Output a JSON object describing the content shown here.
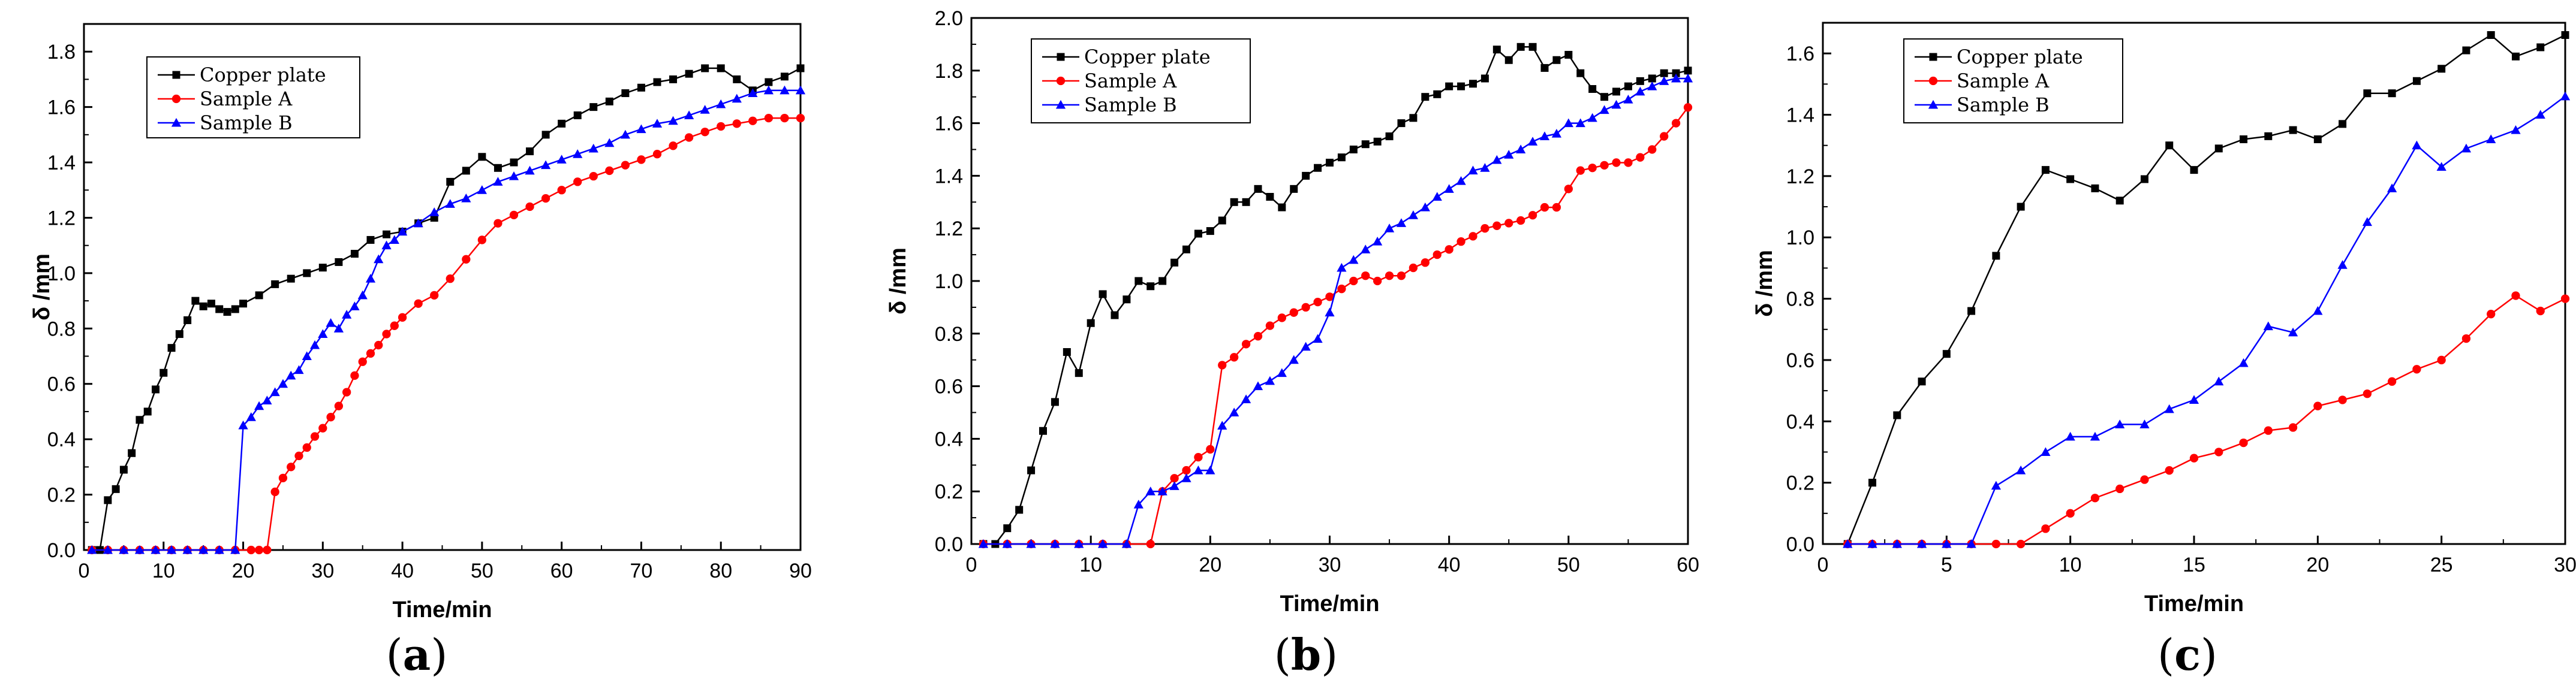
{
  "chart_data": [
    {
      "type": "line",
      "caption": "a",
      "xlabel": "Time/min",
      "ylabel": "δ /mm",
      "xlim": [
        0,
        90
      ],
      "ylim": [
        0,
        1.9
      ],
      "xticks": [
        0,
        10,
        20,
        30,
        40,
        50,
        60,
        70,
        80,
        90
      ],
      "yticks": [
        0.0,
        0.2,
        0.4,
        0.6,
        0.8,
        1.0,
        1.2,
        1.4,
        1.6,
        1.8
      ],
      "xtick_labels": [
        "0",
        "10",
        "20",
        "30",
        "40",
        "50",
        "60",
        "70",
        "80",
        "90"
      ],
      "ytick_labels": [
        "0.0",
        "0.2",
        "0.4",
        "0.6",
        "0.8",
        "1.0",
        "1.2",
        "1.4",
        "1.6",
        "1.8"
      ],
      "legend_position": "top-left",
      "series": [
        {
          "name": "Copper plate",
          "color": "#000000",
          "marker": "square",
          "x": [
            1,
            2,
            3,
            4,
            5,
            6,
            7,
            8,
            9,
            10,
            11,
            12,
            13,
            14,
            15,
            16,
            17,
            18,
            19,
            20,
            22,
            24,
            26,
            28,
            30,
            32,
            34,
            36,
            38,
            40,
            42,
            44,
            46,
            48,
            50,
            52,
            54,
            56,
            58,
            60,
            62,
            64,
            66,
            68,
            70,
            72,
            74,
            76,
            78,
            80,
            82,
            84,
            86,
            88,
            90
          ],
          "y": [
            0.0,
            0.0,
            0.18,
            0.22,
            0.29,
            0.35,
            0.47,
            0.5,
            0.58,
            0.64,
            0.73,
            0.78,
            0.83,
            0.9,
            0.88,
            0.89,
            0.87,
            0.86,
            0.87,
            0.89,
            0.92,
            0.96,
            0.98,
            1.0,
            1.02,
            1.04,
            1.07,
            1.12,
            1.14,
            1.15,
            1.18,
            1.2,
            1.33,
            1.37,
            1.42,
            1.38,
            1.4,
            1.44,
            1.5,
            1.54,
            1.57,
            1.6,
            1.62,
            1.65,
            1.67,
            1.69,
            1.7,
            1.72,
            1.74,
            1.74,
            1.7,
            1.66,
            1.69,
            1.71,
            1.74
          ]
        },
        {
          "name": "Sample A",
          "color": "#ff0000",
          "marker": "circle",
          "x": [
            1,
            3,
            5,
            7,
            9,
            11,
            13,
            15,
            17,
            19,
            21,
            22,
            23,
            24,
            25,
            26,
            27,
            28,
            29,
            30,
            31,
            32,
            33,
            34,
            35,
            36,
            37,
            38,
            39,
            40,
            42,
            44,
            46,
            48,
            50,
            52,
            54,
            56,
            58,
            60,
            62,
            64,
            66,
            68,
            70,
            72,
            74,
            76,
            78,
            80,
            82,
            84,
            86,
            88,
            90
          ],
          "y": [
            0.0,
            0.0,
            0.0,
            0.0,
            0.0,
            0.0,
            0.0,
            0.0,
            0.0,
            0.0,
            0.0,
            0.0,
            0.0,
            0.21,
            0.26,
            0.3,
            0.34,
            0.37,
            0.41,
            0.44,
            0.48,
            0.52,
            0.57,
            0.63,
            0.68,
            0.71,
            0.74,
            0.78,
            0.81,
            0.84,
            0.89,
            0.92,
            0.98,
            1.05,
            1.12,
            1.18,
            1.21,
            1.24,
            1.27,
            1.3,
            1.33,
            1.35,
            1.37,
            1.39,
            1.41,
            1.43,
            1.46,
            1.49,
            1.51,
            1.53,
            1.54,
            1.55,
            1.56,
            1.56,
            1.56
          ]
        },
        {
          "name": "Sample B",
          "color": "#0000ff",
          "marker": "triangle",
          "x": [
            1,
            3,
            5,
            7,
            9,
            11,
            13,
            15,
            17,
            19,
            20,
            21,
            22,
            23,
            24,
            25,
            26,
            27,
            28,
            29,
            30,
            31,
            32,
            33,
            34,
            35,
            36,
            37,
            38,
            39,
            40,
            42,
            44,
            46,
            48,
            50,
            52,
            54,
            56,
            58,
            60,
            62,
            64,
            66,
            68,
            70,
            72,
            74,
            76,
            78,
            80,
            82,
            84,
            86,
            88,
            90
          ],
          "y": [
            0.0,
            0.0,
            0.0,
            0.0,
            0.0,
            0.0,
            0.0,
            0.0,
            0.0,
            0.0,
            0.45,
            0.48,
            0.52,
            0.54,
            0.57,
            0.6,
            0.63,
            0.65,
            0.7,
            0.74,
            0.78,
            0.82,
            0.8,
            0.85,
            0.88,
            0.92,
            0.98,
            1.05,
            1.1,
            1.12,
            1.15,
            1.18,
            1.22,
            1.25,
            1.27,
            1.3,
            1.33,
            1.35,
            1.37,
            1.39,
            1.41,
            1.43,
            1.45,
            1.47,
            1.5,
            1.52,
            1.54,
            1.55,
            1.57,
            1.59,
            1.61,
            1.63,
            1.65,
            1.66,
            1.66,
            1.66
          ]
        }
      ]
    },
    {
      "type": "line",
      "caption": "b",
      "xlabel": "Time/min",
      "ylabel": "δ /mm",
      "xlim": [
        0,
        60
      ],
      "ylim": [
        0,
        2.0
      ],
      "xticks": [
        0,
        10,
        20,
        30,
        40,
        50,
        60
      ],
      "yticks": [
        0.0,
        0.2,
        0.4,
        0.6,
        0.8,
        1.0,
        1.2,
        1.4,
        1.6,
        1.8,
        2.0
      ],
      "xtick_labels": [
        "0",
        "10",
        "20",
        "30",
        "40",
        "50",
        "60"
      ],
      "ytick_labels": [
        "0.0",
        "0.2",
        "0.4",
        "0.6",
        "0.8",
        "1.0",
        "1.2",
        "1.4",
        "1.6",
        "1.8",
        "2.0"
      ],
      "legend_position": "top-left",
      "series": [
        {
          "name": "Copper plate",
          "color": "#000000",
          "marker": "square",
          "x": [
            1,
            2,
            3,
            4,
            5,
            6,
            7,
            8,
            9,
            10,
            11,
            12,
            13,
            14,
            15,
            16,
            17,
            18,
            19,
            20,
            21,
            22,
            23,
            24,
            25,
            26,
            27,
            28,
            29,
            30,
            31,
            32,
            33,
            34,
            35,
            36,
            37,
            38,
            39,
            40,
            41,
            42,
            43,
            44,
            45,
            46,
            47,
            48,
            49,
            50,
            51,
            52,
            53,
            54,
            55,
            56,
            57,
            58,
            59,
            60
          ],
          "y": [
            0.0,
            0.0,
            0.06,
            0.13,
            0.28,
            0.43,
            0.54,
            0.73,
            0.65,
            0.84,
            0.95,
            0.87,
            0.93,
            1.0,
            0.98,
            1.0,
            1.07,
            1.12,
            1.18,
            1.19,
            1.23,
            1.3,
            1.3,
            1.35,
            1.32,
            1.28,
            1.35,
            1.4,
            1.43,
            1.45,
            1.47,
            1.5,
            1.52,
            1.53,
            1.55,
            1.6,
            1.62,
            1.7,
            1.71,
            1.74,
            1.74,
            1.75,
            1.77,
            1.88,
            1.84,
            1.89,
            1.89,
            1.81,
            1.84,
            1.86,
            1.79,
            1.73,
            1.7,
            1.72,
            1.74,
            1.76,
            1.77,
            1.79,
            1.79,
            1.8
          ]
        },
        {
          "name": "Sample A",
          "color": "#ff0000",
          "marker": "circle",
          "x": [
            1,
            3,
            5,
            7,
            9,
            11,
            13,
            15,
            16,
            17,
            18,
            19,
            20,
            21,
            22,
            23,
            24,
            25,
            26,
            27,
            28,
            29,
            30,
            31,
            32,
            33,
            34,
            35,
            36,
            37,
            38,
            39,
            40,
            41,
            42,
            43,
            44,
            45,
            46,
            47,
            48,
            49,
            50,
            51,
            52,
            53,
            54,
            55,
            56,
            57,
            58,
            59,
            60
          ],
          "y": [
            0.0,
            0.0,
            0.0,
            0.0,
            0.0,
            0.0,
            0.0,
            0.0,
            0.2,
            0.25,
            0.28,
            0.33,
            0.36,
            0.68,
            0.71,
            0.76,
            0.79,
            0.83,
            0.86,
            0.88,
            0.9,
            0.92,
            0.94,
            0.97,
            1.0,
            1.02,
            1.0,
            1.02,
            1.02,
            1.05,
            1.07,
            1.1,
            1.12,
            1.15,
            1.17,
            1.2,
            1.21,
            1.22,
            1.23,
            1.25,
            1.28,
            1.28,
            1.35,
            1.42,
            1.43,
            1.44,
            1.45,
            1.45,
            1.47,
            1.5,
            1.55,
            1.6,
            1.66
          ]
        },
        {
          "name": "Sample B",
          "color": "#0000ff",
          "marker": "triangle",
          "x": [
            1,
            3,
            5,
            7,
            9,
            11,
            13,
            14,
            15,
            16,
            17,
            18,
            19,
            20,
            21,
            22,
            23,
            24,
            25,
            26,
            27,
            28,
            29,
            30,
            31,
            32,
            33,
            34,
            35,
            36,
            37,
            38,
            39,
            40,
            41,
            42,
            43,
            44,
            45,
            46,
            47,
            48,
            49,
            50,
            51,
            52,
            53,
            54,
            55,
            56,
            57,
            58,
            59,
            60
          ],
          "y": [
            0.0,
            0.0,
            0.0,
            0.0,
            0.0,
            0.0,
            0.0,
            0.15,
            0.2,
            0.2,
            0.22,
            0.25,
            0.28,
            0.28,
            0.45,
            0.5,
            0.55,
            0.6,
            0.62,
            0.65,
            0.7,
            0.75,
            0.78,
            0.88,
            1.05,
            1.08,
            1.12,
            1.15,
            1.2,
            1.22,
            1.25,
            1.28,
            1.32,
            1.35,
            1.38,
            1.42,
            1.43,
            1.46,
            1.48,
            1.5,
            1.53,
            1.55,
            1.56,
            1.6,
            1.6,
            1.62,
            1.65,
            1.67,
            1.69,
            1.72,
            1.74,
            1.76,
            1.77,
            1.77
          ]
        }
      ]
    },
    {
      "type": "line",
      "caption": "c",
      "xlabel": "Time/min",
      "ylabel": "δ /mm",
      "xlim": [
        0,
        30
      ],
      "ylim": [
        0,
        1.7
      ],
      "xticks": [
        0,
        5,
        10,
        15,
        20,
        25,
        30
      ],
      "yticks": [
        0.0,
        0.2,
        0.4,
        0.6,
        0.8,
        1.0,
        1.2,
        1.4,
        1.6
      ],
      "xtick_labels": [
        "0",
        "5",
        "10",
        "15",
        "20",
        "25",
        "30"
      ],
      "ytick_labels": [
        "0.0",
        "0.2",
        "0.4",
        "0.6",
        "0.8",
        "1.0",
        "1.2",
        "1.4",
        "1.6"
      ],
      "legend_position": "top-left",
      "series": [
        {
          "name": "Copper plate",
          "color": "#000000",
          "marker": "square",
          "x": [
            1,
            2,
            3,
            4,
            5,
            6,
            7,
            8,
            9,
            10,
            11,
            12,
            13,
            14,
            15,
            16,
            17,
            18,
            19,
            20,
            21,
            22,
            23,
            24,
            25,
            26,
            27,
            28,
            29,
            30
          ],
          "y": [
            0.0,
            0.2,
            0.42,
            0.53,
            0.62,
            0.76,
            0.94,
            1.1,
            1.22,
            1.19,
            1.16,
            1.12,
            1.19,
            1.3,
            1.22,
            1.29,
            1.32,
            1.33,
            1.35,
            1.32,
            1.37,
            1.47,
            1.47,
            1.51,
            1.55,
            1.61,
            1.66,
            1.59,
            1.62,
            1.66
          ]
        },
        {
          "name": "Sample A",
          "color": "#ff0000",
          "marker": "circle",
          "x": [
            1,
            2,
            3,
            4,
            5,
            6,
            7,
            8,
            9,
            10,
            11,
            12,
            13,
            14,
            15,
            16,
            17,
            18,
            19,
            20,
            21,
            22,
            23,
            24,
            25,
            26,
            27,
            28,
            29,
            30
          ],
          "y": [
            0.0,
            0.0,
            0.0,
            0.0,
            0.0,
            0.0,
            0.0,
            0.0,
            0.05,
            0.1,
            0.15,
            0.18,
            0.21,
            0.24,
            0.28,
            0.3,
            0.33,
            0.37,
            0.38,
            0.45,
            0.47,
            0.49,
            0.53,
            0.57,
            0.6,
            0.67,
            0.75,
            0.81,
            0.76,
            0.8
          ]
        },
        {
          "name": "Sample B",
          "color": "#0000ff",
          "marker": "triangle",
          "x": [
            1,
            2,
            3,
            4,
            5,
            6,
            7,
            8,
            9,
            10,
            11,
            12,
            13,
            14,
            15,
            16,
            17,
            18,
            19,
            20,
            21,
            22,
            23,
            24,
            25,
            26,
            27,
            28,
            29,
            30
          ],
          "y": [
            0.0,
            0.0,
            0.0,
            0.0,
            0.0,
            0.0,
            0.19,
            0.24,
            0.3,
            0.35,
            0.35,
            0.39,
            0.39,
            0.44,
            0.47,
            0.53,
            0.59,
            0.71,
            0.69,
            0.76,
            0.91,
            1.05,
            1.16,
            1.3,
            1.23,
            1.29,
            1.32,
            1.35,
            1.4,
            1.46
          ]
        }
      ]
    }
  ]
}
